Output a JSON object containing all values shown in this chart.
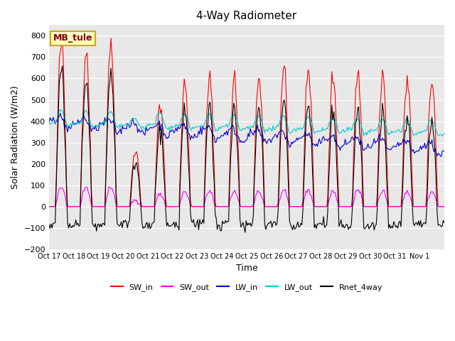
{
  "title": "4-Way Radiometer",
  "xlabel": "Time",
  "ylabel": "Solar Radiation (W/m2)",
  "station_label": "MB_tule",
  "ylim": [
    -200,
    850
  ],
  "yticks": [
    -200,
    -100,
    0,
    100,
    200,
    300,
    400,
    500,
    600,
    700,
    800
  ],
  "x_tick_labels": [
    "Oct 17",
    "Oct 18",
    "Oct 19",
    "Oct 20",
    "Oct 21",
    "Oct 22",
    "Oct 23",
    "Oct 24",
    "Oct 25",
    "Oct 26",
    "Oct 27",
    "Oct 28",
    "Oct 29",
    "Oct 30",
    "Oct 31",
    "Nov 1"
  ],
  "bg_color": "#e8e8e8",
  "colors": {
    "SW_in": "#ff0000",
    "SW_out": "#ff00ff",
    "LW_in": "#0000cc",
    "LW_out": "#00cccc",
    "Rnet_4way": "#000000"
  },
  "legend_labels": [
    "SW_in",
    "SW_out",
    "LW_in",
    "LW_out",
    "Rnet_4way"
  ],
  "sw_in_peaks": [
    760,
    745,
    775,
    270,
    480,
    580,
    595,
    600,
    615,
    655,
    635,
    610,
    630,
    625,
    595,
    600
  ]
}
